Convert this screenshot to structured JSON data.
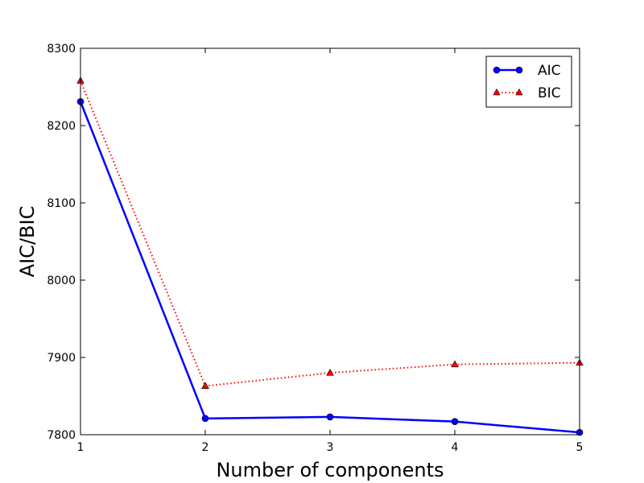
{
  "chart_data": {
    "type": "line",
    "xlabel": "Number of components",
    "ylabel": "AIC/BIC",
    "x": [
      1,
      2,
      3,
      4,
      5
    ],
    "xlim": [
      1,
      5
    ],
    "ylim": [
      7800,
      8300
    ],
    "xticks": [
      "1",
      "2",
      "3",
      "4",
      "5"
    ],
    "yticks": [
      "7800",
      "7900",
      "8000",
      "8100",
      "8200",
      "8300"
    ],
    "grid": false,
    "legend_position": "top-right",
    "series": [
      {
        "name": "AIC",
        "values": [
          8231,
          7821,
          7823,
          7817,
          7803
        ],
        "color": "#0000ff",
        "marker": "circle",
        "line_style": "solid"
      },
      {
        "name": "BIC",
        "values": [
          8258,
          7863,
          7880,
          7891,
          7893
        ],
        "color": "#ff0000",
        "marker": "triangle",
        "line_style": "dotted"
      }
    ]
  }
}
